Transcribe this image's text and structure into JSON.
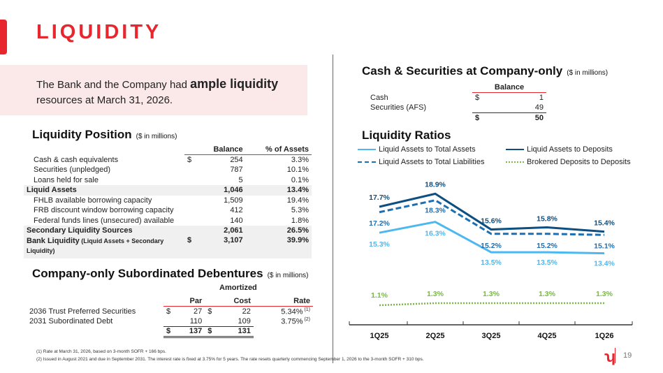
{
  "title": "LIQUIDITY",
  "callout": {
    "pre": "The Bank and the Company had ",
    "bold": "ample liquidity",
    "post": " resources at March 31, 2026."
  },
  "liquidity_position": {
    "title": "Liquidity Position",
    "unit": "($ in millions)",
    "headers": [
      "Balance",
      "% of Assets"
    ],
    "rows": [
      {
        "label": "Cash & cash equivalents",
        "cur": "$",
        "bal": "254",
        "pct": "3.3%"
      },
      {
        "label": "Securities (unpledged)",
        "cur": "",
        "bal": "787",
        "pct": "10.1%"
      },
      {
        "label": "Loans held for sale",
        "cur": "",
        "bal": "5",
        "pct": "0.1%"
      },
      {
        "label": "Liquid Assets",
        "cur": "",
        "bal": "1,046",
        "pct": "13.4%"
      },
      {
        "label": "FHLB available borrowing capacity",
        "cur": "",
        "bal": "1,509",
        "pct": "19.4%"
      },
      {
        "label": "FRB discount window borrowing capacity",
        "cur": "",
        "bal": "412",
        "pct": "5.3%"
      },
      {
        "label": "Federal funds lines (unsecured) available",
        "cur": "",
        "bal": "140",
        "pct": "1.8%"
      },
      {
        "label": "Secondary Liquidity Sources",
        "cur": "",
        "bal": "2,061",
        "pct": "26.5%"
      },
      {
        "label": "Bank Liquidity",
        "note": "(Liquid Assets + Secondary Liquidity)",
        "cur": "$",
        "bal": "3,107",
        "pct": "39.9%"
      }
    ]
  },
  "debentures": {
    "title": "Company-only Subordinated Debentures",
    "unit": "($ in millions)",
    "group": "Amortized",
    "headers": [
      "Par",
      "Cost",
      "Rate"
    ],
    "rows": [
      {
        "label": "2036 Trust Preferred Securities",
        "c1": "$",
        "par": "27",
        "c2": "$",
        "cost": "22",
        "rate": "5.34%",
        "fn": "(1)"
      },
      {
        "label": "2031 Subordinated Debt",
        "c1": "",
        "par": "110",
        "c2": "",
        "cost": "109",
        "rate": "3.75%",
        "fn": "(2)"
      }
    ],
    "total": {
      "c1": "$",
      "par": "137",
      "c2": "$",
      "cost": "131"
    }
  },
  "cash_sec": {
    "title": "Cash & Securities at Company-only",
    "unit": "($ in millions)",
    "header": "Balance",
    "rows": [
      {
        "label": "Cash",
        "cur": "$",
        "val": "1"
      },
      {
        "label": "Securities (AFS)",
        "cur": "",
        "val": "49"
      }
    ],
    "total": {
      "cur": "$",
      "val": "50"
    }
  },
  "chart_data": {
    "type": "line",
    "title": "Liquidity Ratios",
    "categories": [
      "1Q25",
      "2Q25",
      "3Q25",
      "4Q25",
      "1Q26"
    ],
    "series": [
      {
        "name": "Liquid Assets to Total Assets",
        "values": [
          15.3,
          16.3,
          13.5,
          13.5,
          13.4
        ],
        "color": "#4db8f0",
        "style": "solid"
      },
      {
        "name": "Liquid Assets to Deposits",
        "values": [
          17.7,
          18.9,
          15.6,
          15.8,
          15.4
        ],
        "color": "#0d4f80",
        "style": "solid"
      },
      {
        "name": "Liquid Assets to Total Liabilities",
        "values": [
          17.2,
          18.3,
          15.2,
          15.2,
          15.1
        ],
        "color": "#1a6fb5",
        "style": "dashed"
      },
      {
        "name": "Brokered Deposits to Deposits",
        "values": [
          1.1,
          1.3,
          1.3,
          1.3,
          1.3
        ],
        "color": "#7ab648",
        "style": "dotted"
      }
    ],
    "unit": "%"
  },
  "footnotes": [
    "(1)    Rate at March 31, 2026, based on 3-month SOFR + 166 bps.",
    "(2)    Issued in August 2021 and due in September 2031. The interest rate is fixed at 3.75% for 5 years. The rate resets quarterly commencing September 1, 2026 to the 3-month SOFR + 310 bps."
  ],
  "page_number": "19"
}
